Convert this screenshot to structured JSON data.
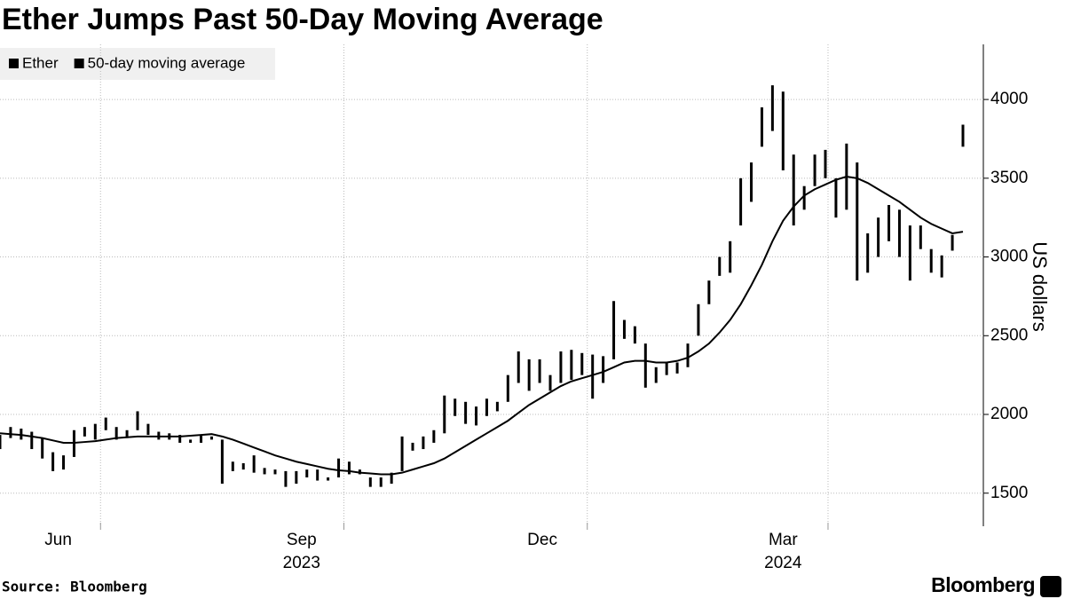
{
  "chart_data": {
    "type": "candlestick",
    "title": "Ether Jumps Past 50-Day Moving Average",
    "y_label": "US dollars",
    "source": "Source: Bloomberg",
    "brand": "Bloomberg",
    "xlim": [
      0,
      91
    ],
    "xticks": [
      {
        "value": 5.5,
        "label": "Jun"
      },
      {
        "value": 28.5,
        "label": "Sep"
      },
      {
        "value": 51.25,
        "label": "Dec"
      },
      {
        "value": 74,
        "label": "Mar"
      }
    ],
    "year_labels": [
      {
        "value": 28.5,
        "label": "2023"
      },
      {
        "value": 74,
        "label": "2024"
      }
    ],
    "xgrid": [
      9.5,
      32.5,
      55.5,
      78.25
    ],
    "ylim": [
      1290,
      4350
    ],
    "yticks": [
      1500,
      2000,
      2500,
      3000,
      3500,
      4000
    ],
    "grid": true,
    "series": [
      {
        "name": "Ether",
        "color": "#000000",
        "high": [
          1870,
          1920,
          1910,
          1890,
          1850,
          1760,
          1740,
          1900,
          1920,
          1940,
          1980,
          1920,
          1900,
          2020,
          1940,
          1890,
          1880,
          1870,
          1840,
          1870,
          1860,
          1840,
          1700,
          1690,
          1740,
          1660,
          1650,
          1640,
          1640,
          1650,
          1650,
          1600,
          1720,
          1700,
          1650,
          1600,
          1600,
          1630,
          1860,
          1820,
          1860,
          1900,
          2120,
          2100,
          2080,
          2050,
          2100,
          2080,
          2250,
          2400,
          2350,
          2350,
          2250,
          2400,
          2410,
          2390,
          2380,
          2370,
          2720,
          2600,
          2560,
          2450,
          2300,
          2330,
          2330,
          2450,
          2700,
          2850,
          3000,
          3100,
          3500,
          3600,
          3950,
          4090,
          4050,
          3650,
          3450,
          3650,
          3680,
          3500,
          3720,
          3600,
          3150,
          3250,
          3330,
          3300,
          3200,
          3200,
          3050,
          3010,
          3140,
          3840
        ],
        "low": [
          1780,
          1850,
          1840,
          1780,
          1720,
          1640,
          1650,
          1730,
          1860,
          1840,
          1900,
          1840,
          1850,
          1900,
          1870,
          1840,
          1840,
          1820,
          1820,
          1820,
          1840,
          1560,
          1640,
          1650,
          1630,
          1620,
          1620,
          1540,
          1560,
          1600,
          1580,
          1580,
          1600,
          1620,
          1620,
          1540,
          1540,
          1560,
          1640,
          1770,
          1780,
          1820,
          1880,
          1990,
          1940,
          1930,
          1990,
          2020,
          2080,
          2200,
          2150,
          2200,
          2150,
          2200,
          2220,
          2250,
          2100,
          2200,
          2350,
          2480,
          2450,
          2170,
          2200,
          2250,
          2260,
          2300,
          2500,
          2700,
          2880,
          2900,
          3200,
          3350,
          3700,
          3800,
          3550,
          3200,
          3300,
          3450,
          3500,
          3250,
          3300,
          2850,
          2900,
          3000,
          3100,
          3000,
          2850,
          3050,
          2900,
          2870,
          3040,
          3700
        ]
      },
      {
        "name": "50-day moving average",
        "color": "#000000",
        "values": [
          1880,
          1875,
          1870,
          1860,
          1850,
          1835,
          1820,
          1820,
          1825,
          1830,
          1840,
          1850,
          1855,
          1860,
          1860,
          1860,
          1860,
          1860,
          1865,
          1870,
          1875,
          1860,
          1840,
          1815,
          1790,
          1765,
          1740,
          1720,
          1700,
          1685,
          1670,
          1655,
          1645,
          1640,
          1630,
          1625,
          1620,
          1620,
          1630,
          1650,
          1670,
          1690,
          1720,
          1760,
          1800,
          1840,
          1880,
          1920,
          1960,
          2010,
          2060,
          2100,
          2140,
          2180,
          2210,
          2230,
          2250,
          2270,
          2300,
          2330,
          2340,
          2340,
          2330,
          2330,
          2340,
          2360,
          2400,
          2450,
          2520,
          2600,
          2700,
          2820,
          2950,
          3100,
          3230,
          3320,
          3390,
          3430,
          3460,
          3490,
          3510,
          3500,
          3470,
          3430,
          3390,
          3350,
          3300,
          3250,
          3210,
          3180,
          3150,
          3160
        ]
      }
    ]
  }
}
